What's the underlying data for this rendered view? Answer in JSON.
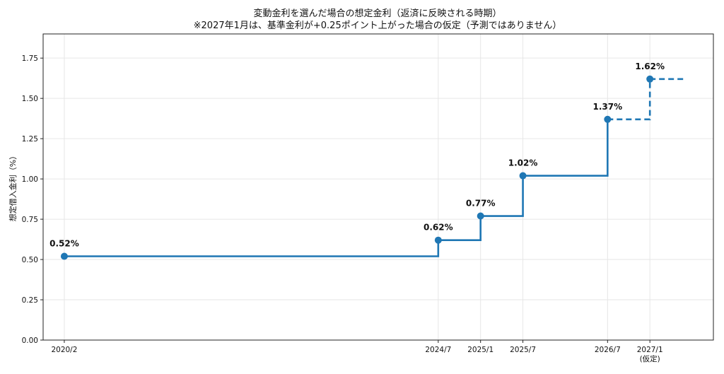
{
  "chart_data": {
    "type": "line",
    "title": "変動金利を選んだ場合の想定金利（返済に反映される時期）",
    "subtitle": "※2027年1月は、基準金利が+0.25ポイント上がった場合の仮定（予測ではありません）",
    "ylabel": "想定借入金利（%）",
    "xlabel": "",
    "ylim": [
      0,
      1.9
    ],
    "yticks": [
      "0.00",
      "0.25",
      "0.50",
      "0.75",
      "1.00",
      "1.25",
      "1.50",
      "1.75"
    ],
    "ytick_values": [
      0,
      0.25,
      0.5,
      0.75,
      1.0,
      1.25,
      1.5,
      1.75
    ],
    "grid": true,
    "step": "post",
    "series": [
      {
        "color": "#1f77b4",
        "points": [
          {
            "x": "2020/2",
            "y": 0.52,
            "label": "0.52%"
          },
          {
            "x": "2024/7",
            "y": 0.62,
            "label": "0.62%"
          },
          {
            "x": "2025/1",
            "y": 0.77,
            "label": "0.77%"
          },
          {
            "x": "2025/7",
            "y": 1.02,
            "label": "1.02%"
          },
          {
            "x": "2026/7",
            "y": 1.37,
            "label": "1.37%"
          },
          {
            "x": "2027/1",
            "y": 1.62,
            "label": "1.62%"
          }
        ]
      }
    ],
    "xticks": [
      {
        "x": "2020/2",
        "label": "2020/2"
      },
      {
        "x": "2024/7",
        "label": "2024/7"
      },
      {
        "x": "2025/1",
        "label": "2025/1"
      },
      {
        "x": "2025/7",
        "label": "2025/7"
      },
      {
        "x": "2026/7",
        "label": "2026/7"
      },
      {
        "x": "2027/1",
        "label": "2027/1",
        "sublabel": "(仮定)"
      }
    ],
    "dashed_from": "2026/7",
    "extend_to": "2027/6"
  }
}
